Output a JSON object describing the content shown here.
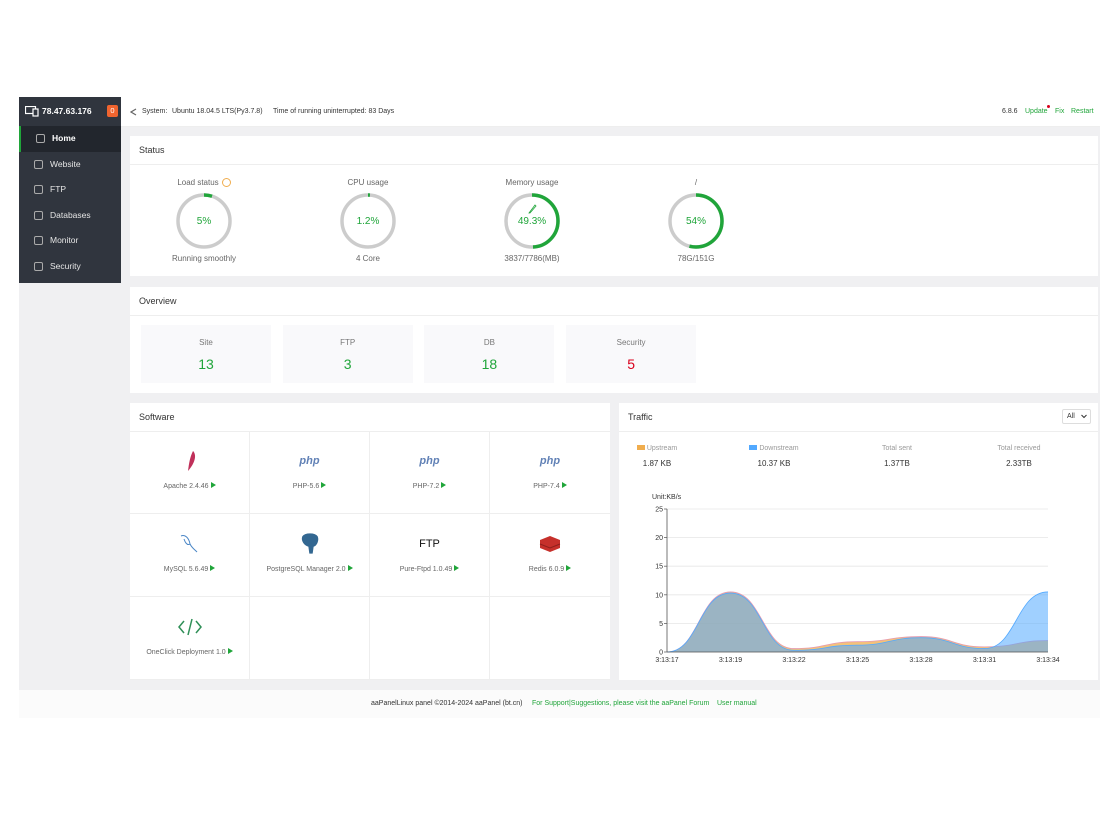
{
  "sidebar": {
    "ip": "78.47.63.176",
    "badge": "0",
    "menu": [
      "Home",
      "Website",
      "FTP",
      "Databases",
      "Monitor",
      "Security"
    ]
  },
  "topbar": {
    "system_label": "System:",
    "system": "Ubuntu 18.04.5 LTS(Py3.7.8)",
    "uptime": "Time of running uninterrupted: 83 Days",
    "version": "6.8.6",
    "links": [
      "Update",
      "Fix",
      "Restart"
    ]
  },
  "status": {
    "title": "Status",
    "gauges": [
      {
        "label": "Load status",
        "value": 5,
        "value_label": "5%",
        "caption": "Running smoothly"
      },
      {
        "label": "CPU usage",
        "value": 1.2,
        "value_label": "1.2%",
        "caption": "4 Core"
      },
      {
        "label": "Memory usage",
        "value": 49.3,
        "value_label": "49.3%",
        "caption": "3837/7786(MB)"
      },
      {
        "label": "/",
        "value": 54,
        "value_label": "54%",
        "caption": "78G/151G"
      }
    ]
  },
  "overview": {
    "title": "Overview",
    "cards": [
      {
        "label": "Site",
        "value": 13,
        "color": "#20a53a"
      },
      {
        "label": "FTP",
        "value": 3,
        "color": "#20a53a"
      },
      {
        "label": "DB",
        "value": 18,
        "color": "#20a53a"
      },
      {
        "label": "Security",
        "value": 5,
        "color": "#d9001b"
      }
    ]
  },
  "software": {
    "title": "Software",
    "items": [
      {
        "name": "Apache 2.4.46"
      },
      {
        "name": "PHP-5.6",
        "logo": "php"
      },
      {
        "name": "PHP-7.2",
        "logo": "php"
      },
      {
        "name": "PHP-7.4",
        "logo": "php"
      },
      {
        "name": "MySQL 5.6.49"
      },
      {
        "name": "PostgreSQL Manager 2.0"
      },
      {
        "name": "Pure-Ftpd 1.0.49",
        "logo": "FTP"
      },
      {
        "name": "Redis 6.0.9"
      },
      {
        "name": "OneClick Deployment 1.0"
      }
    ]
  },
  "traffic": {
    "title": "Traffic",
    "filter": "All",
    "current": [
      "1.87 KB",
      "10.37 KB"
    ],
    "totals": [
      {
        "label": "Total sent",
        "value": "1.37TB"
      },
      {
        "label": "Total received",
        "value": "2.33TB"
      }
    ]
  },
  "chart_data": {
    "type": "area",
    "y_label": "Unit:KB/s",
    "categories": [
      "3:13:17",
      "3:13:19",
      "3:13:22",
      "3:13:25",
      "3:13:28",
      "3:13:31",
      "3:13:34"
    ],
    "series": [
      {
        "name": "Upstream",
        "color": "#f0ad4e",
        "values": [
          0,
          10.5,
          0.6,
          1.8,
          2.7,
          0.9,
          2
        ]
      },
      {
        "name": "Downstream",
        "color": "#52a9ff",
        "values": [
          0,
          10.3,
          0.3,
          1.2,
          2.5,
          0.6,
          10.5
        ]
      }
    ],
    "ylim": [
      0,
      25
    ],
    "yticks": [
      0,
      5,
      10,
      15,
      20,
      25
    ],
    "grid": true
  },
  "footer": {
    "copyright": "aaPanelLinux panel ©2014-2024 aaPanel (bt.cn)",
    "support": "For Support|Suggestions, please visit the aaPanel Forum",
    "manual": "User manual"
  }
}
